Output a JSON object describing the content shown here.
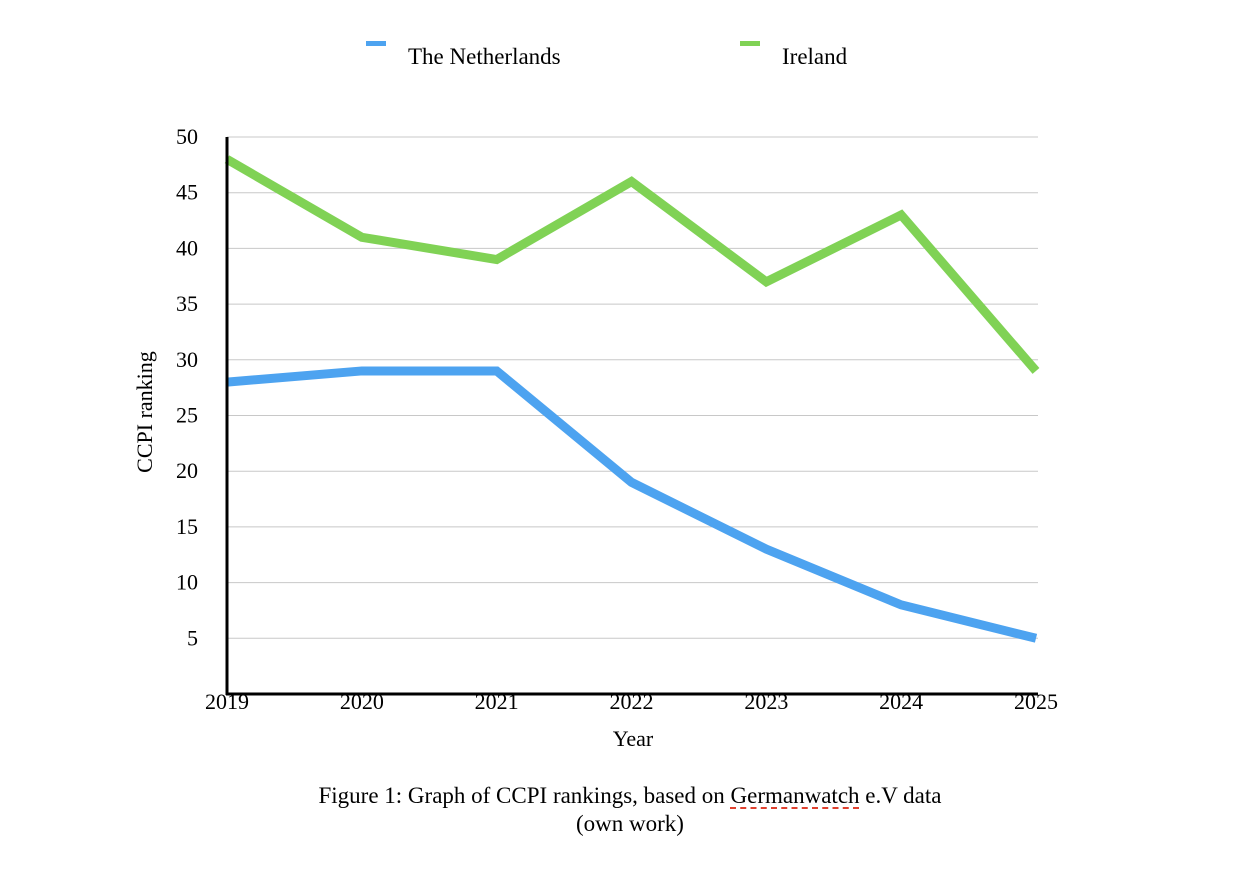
{
  "chart_data": {
    "type": "line",
    "title": "",
    "xlabel": "Year",
    "ylabel": "CCPI ranking",
    "categories": [
      "2019",
      "2020",
      "2021",
      "2022",
      "2023",
      "2024",
      "2025"
    ],
    "yticks": [
      5,
      10,
      15,
      20,
      25,
      30,
      35,
      40,
      45,
      50
    ],
    "ylim": [
      0,
      50
    ],
    "grid": true,
    "legend_position": "top",
    "series": [
      {
        "name": "The Netherlands",
        "color": "#4da3f0",
        "values": [
          28,
          29,
          29,
          19,
          13,
          8,
          5
        ]
      },
      {
        "name": "Ireland",
        "color": "#80d255",
        "values": [
          48,
          41,
          39,
          46,
          37,
          43,
          29
        ]
      }
    ]
  },
  "caption": {
    "line1_before": "Figure 1: Graph of CCPI rankings, based on ",
    "line1_underlined": "Germanwatch",
    "line1_after": " e.V data",
    "line2": "(own work)"
  }
}
